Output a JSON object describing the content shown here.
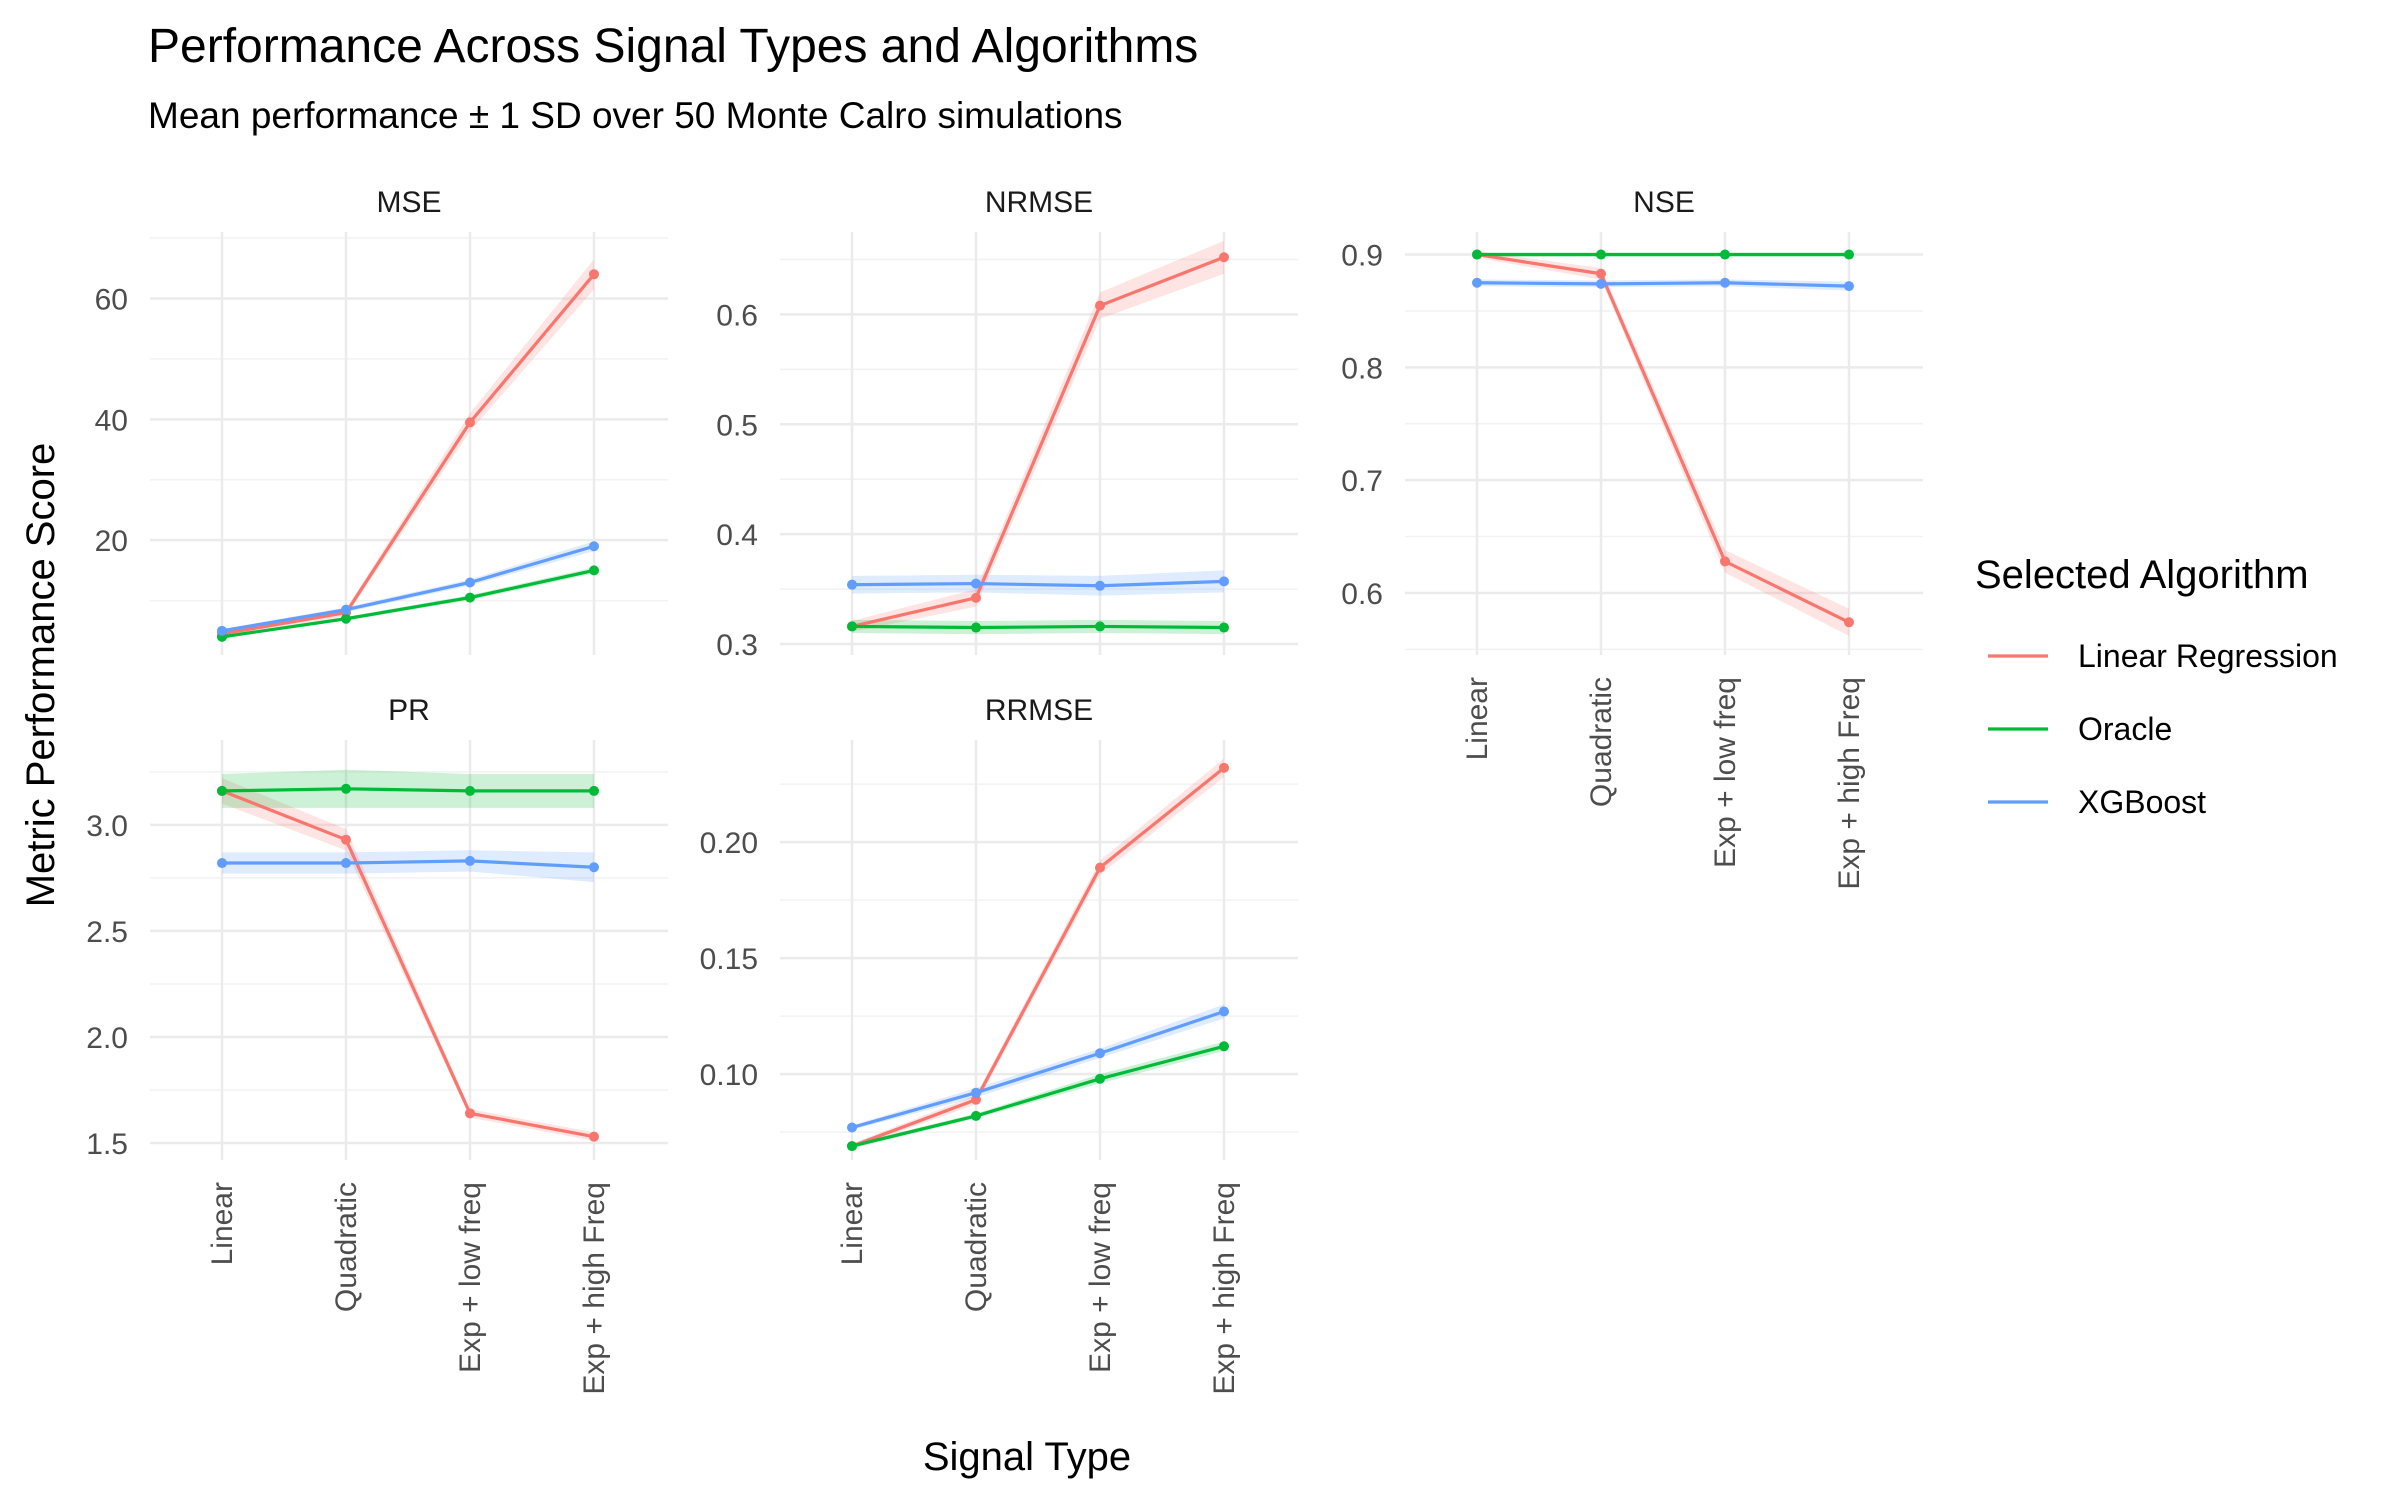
{
  "chart_data": {
    "type": "line",
    "title": "Performance Across Signal Types and Algorithms",
    "subtitle": "Mean performance ± 1 SD over 50 Monte Calro simulations",
    "xlabel": "Signal Type",
    "ylabel": "Metric Performance Score",
    "categories": [
      "Linear",
      "Quadratic",
      "Exp + low freq",
      "Exp + high Freq"
    ],
    "legend": {
      "title": "Selected Algorithm",
      "position": "right",
      "entries": [
        {
          "name": "Linear Regression",
          "color": "#F8766D"
        },
        {
          "name": "Oracle",
          "color": "#00BA38"
        },
        {
          "name": "XGBoost",
          "color": "#619CFF"
        }
      ]
    },
    "grid": true,
    "panels": [
      {
        "name": "MSE",
        "ylim": [
          1,
          71
        ],
        "yticks": [
          20,
          40,
          60
        ],
        "ytick_labels": [
          "20",
          "40",
          "60"
        ],
        "series": [
          {
            "name": "Linear Regression",
            "color": "#F8766D",
            "values": [
              4.5,
              8.0,
              39.5,
              64.0
            ],
            "sd": [
              0.4,
              0.6,
              1.5,
              2.5
            ]
          },
          {
            "name": "Oracle",
            "color": "#00BA38",
            "values": [
              4.0,
              7.0,
              10.5,
              15.0
            ],
            "sd": [
              0.2,
              0.3,
              0.4,
              0.5
            ]
          },
          {
            "name": "XGBoost",
            "color": "#619CFF",
            "values": [
              5.0,
              8.5,
              13.0,
              19.0
            ],
            "sd": [
              0.3,
              0.4,
              0.5,
              0.8
            ]
          }
        ]
      },
      {
        "name": "NRMSE",
        "ylim": [
          0.29,
          0.675
        ],
        "yticks": [
          0.3,
          0.4,
          0.5,
          0.6
        ],
        "ytick_labels": [
          "0.3",
          "0.4",
          "0.5",
          "0.6"
        ],
        "series": [
          {
            "name": "Linear Regression",
            "color": "#F8766D",
            "values": [
              0.316,
              0.342,
              0.608,
              0.652
            ],
            "sd": [
              0.005,
              0.008,
              0.012,
              0.015
            ]
          },
          {
            "name": "Oracle",
            "color": "#00BA38",
            "values": [
              0.316,
              0.315,
              0.316,
              0.315
            ],
            "sd": [
              0.006,
              0.006,
              0.006,
              0.006
            ]
          },
          {
            "name": "XGBoost",
            "color": "#619CFF",
            "values": [
              0.354,
              0.355,
              0.353,
              0.357
            ],
            "sd": [
              0.008,
              0.008,
              0.009,
              0.01
            ]
          }
        ]
      },
      {
        "name": "NSE",
        "ylim": [
          0.545,
          0.92
        ],
        "yticks": [
          0.6,
          0.7,
          0.8,
          0.9
        ],
        "ytick_labels": [
          "0.6",
          "0.7",
          "0.8",
          "0.9"
        ],
        "series": [
          {
            "name": "Linear Regression",
            "color": "#F8766D",
            "values": [
              0.9,
              0.883,
              0.628,
              0.574
            ],
            "sd": [
              0.003,
              0.005,
              0.01,
              0.012
            ]
          },
          {
            "name": "Oracle",
            "color": "#00BA38",
            "values": [
              0.9,
              0.9,
              0.9,
              0.9
            ],
            "sd": [
              0.002,
              0.002,
              0.002,
              0.002
            ]
          },
          {
            "name": "XGBoost",
            "color": "#619CFF",
            "values": [
              0.875,
              0.874,
              0.875,
              0.872
            ],
            "sd": [
              0.003,
              0.003,
              0.003,
              0.004
            ]
          }
        ]
      },
      {
        "name": "PR",
        "ylim": [
          1.42,
          3.4
        ],
        "yticks": [
          1.5,
          2.0,
          2.5,
          3.0
        ],
        "ytick_labels": [
          "1.5",
          "2.0",
          "2.5",
          "3.0"
        ],
        "series": [
          {
            "name": "Linear Regression",
            "color": "#F8766D",
            "values": [
              3.16,
              2.93,
              1.64,
              1.53
            ],
            "sd": [
              0.06,
              0.05,
              0.02,
              0.02
            ]
          },
          {
            "name": "Oracle",
            "color": "#00BA38",
            "values": [
              3.16,
              3.17,
              3.16,
              3.16
            ],
            "sd": [
              0.08,
              0.09,
              0.08,
              0.08
            ]
          },
          {
            "name": "XGBoost",
            "color": "#619CFF",
            "values": [
              2.82,
              2.82,
              2.83,
              2.8
            ],
            "sd": [
              0.05,
              0.05,
              0.05,
              0.07
            ]
          }
        ]
      },
      {
        "name": "RRMSE",
        "ylim": [
          0.063,
          0.244
        ],
        "yticks": [
          0.1,
          0.15,
          0.2
        ],
        "ytick_labels": [
          "0.10",
          "0.15",
          "0.20"
        ],
        "series": [
          {
            "name": "Linear Regression",
            "color": "#F8766D",
            "values": [
              0.069,
              0.089,
              0.189,
              0.232
            ],
            "sd": [
              0.001,
              0.002,
              0.003,
              0.004
            ]
          },
          {
            "name": "Oracle",
            "color": "#00BA38",
            "values": [
              0.069,
              0.082,
              0.098,
              0.112
            ],
            "sd": [
              0.001,
              0.001,
              0.002,
              0.002
            ]
          },
          {
            "name": "XGBoost",
            "color": "#619CFF",
            "values": [
              0.077,
              0.092,
              0.109,
              0.127
            ],
            "sd": [
              0.001,
              0.002,
              0.002,
              0.003
            ]
          }
        ]
      }
    ]
  }
}
